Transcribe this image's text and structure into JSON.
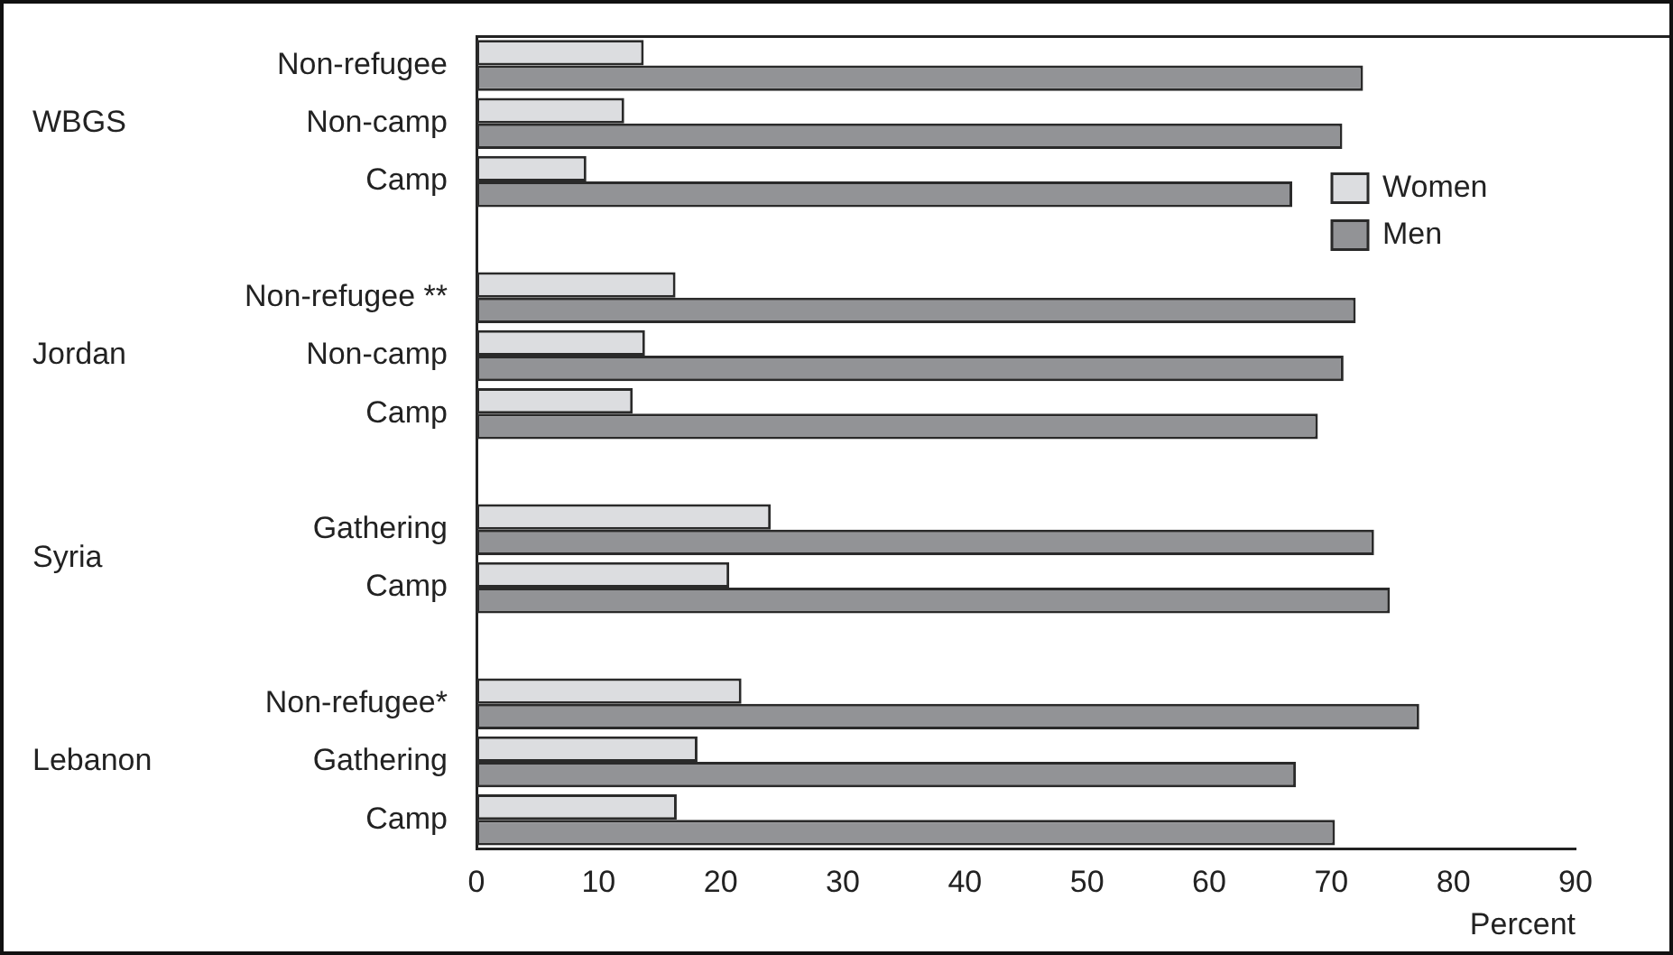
{
  "chart_data": {
    "type": "bar",
    "orientation": "horizontal",
    "xlabel": "Percent",
    "categories": [
      "Non-refugee",
      "Non-camp",
      "Camp",
      null,
      "Non-refugee **",
      "Non-camp",
      "Camp",
      null,
      "Gathering",
      "Camp",
      null,
      "Non-refugee*",
      "Gathering",
      "Camp"
    ],
    "annotations": [
      "WBGS",
      "Jordan",
      "Syria",
      "Lebanon"
    ],
    "series": [
      {
        "name": "Women",
        "color": "#dcdde0",
        "values": [
          13.7,
          12.1,
          9.0,
          null,
          16.3,
          13.8,
          12.8,
          null,
          24.1,
          20.7,
          null,
          21.7,
          18.1,
          16.4
        ]
      },
      {
        "name": "Men",
        "color": "#929396",
        "values": [
          72.6,
          70.9,
          66.8,
          null,
          72.0,
          71.0,
          68.9,
          null,
          73.5,
          74.8,
          null,
          77.2,
          67.1,
          70.3
        ]
      }
    ],
    "xlim": [
      0,
      90
    ],
    "xticks": [
      0,
      10,
      20,
      30,
      40,
      50,
      60,
      70,
      80,
      90
    ],
    "grid": false,
    "legend": "top right"
  }
}
